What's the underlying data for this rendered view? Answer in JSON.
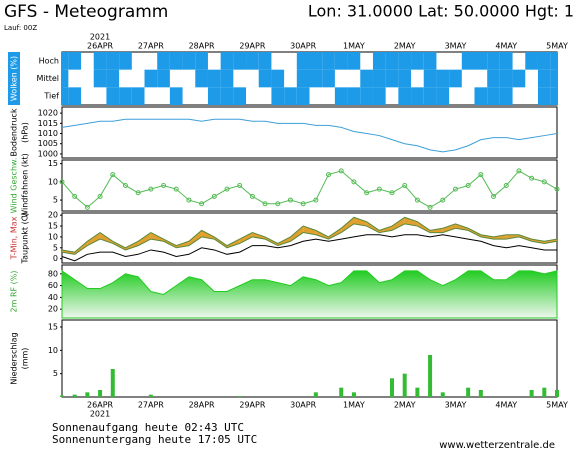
{
  "header": {
    "title": "GFS - Meteogramm",
    "location": "Lon: 31.0000 Lat: 50.0000 Hgt: 1",
    "run": "Lauf: 00Z",
    "year": "2021",
    "dates": [
      "26APR",
      "27APR",
      "28APR",
      "29APR",
      "30APR",
      "1MAY",
      "2MAY",
      "3MAY",
      "4MAY",
      "5MAY"
    ]
  },
  "chart_data": [
    {
      "type": "cloud",
      "label": [
        "Wolken (%)"
      ],
      "rows": [
        "Hoch",
        "Mittel",
        "Tief"
      ],
      "color": "#1e9be8",
      "layers": [
        [
          100,
          100,
          0,
          100,
          100,
          100,
          0,
          0,
          100,
          100,
          100,
          100,
          0,
          100,
          100,
          100,
          100,
          0,
          0,
          100,
          100,
          100,
          100,
          100,
          0,
          100,
          100,
          100,
          100,
          100,
          0,
          0,
          100,
          100,
          100,
          100,
          0,
          100,
          100,
          100
        ],
        [
          100,
          0,
          0,
          100,
          100,
          0,
          0,
          100,
          100,
          0,
          0,
          100,
          100,
          100,
          0,
          0,
          100,
          100,
          0,
          100,
          100,
          100,
          0,
          0,
          100,
          100,
          100,
          100,
          0,
          100,
          100,
          100,
          0,
          0,
          100,
          100,
          100,
          0,
          100,
          100
        ],
        [
          100,
          100,
          0,
          0,
          100,
          100,
          100,
          0,
          0,
          100,
          0,
          0,
          100,
          100,
          100,
          0,
          0,
          100,
          100,
          100,
          0,
          0,
          100,
          100,
          100,
          100,
          0,
          100,
          100,
          100,
          100,
          0,
          0,
          100,
          100,
          100,
          0,
          0,
          100,
          100
        ]
      ]
    },
    {
      "type": "line",
      "label": [
        "Bodendruck",
        "(hPa)"
      ],
      "color": "#3ca0d8",
      "ylim": [
        998,
        1023
      ],
      "yticks": [
        1000,
        1005,
        1010,
        1015,
        1020
      ],
      "values": [
        1013,
        1014,
        1015,
        1016,
        1016,
        1017,
        1017,
        1017,
        1017,
        1017,
        1017,
        1016,
        1017,
        1017,
        1017,
        1016,
        1016,
        1015,
        1015,
        1015,
        1014,
        1014,
        1013,
        1011,
        1010,
        1009,
        1007,
        1005,
        1004,
        1002,
        1001,
        1002,
        1004,
        1007,
        1008,
        1008,
        1007,
        1008,
        1009,
        1010
      ]
    },
    {
      "type": "line",
      "label": [
        "Wind Geschw.",
        "Windfahnen (kt)"
      ],
      "label_colors": [
        "#33aa33",
        "#000000"
      ],
      "color": "#55bb55",
      "markers": true,
      "ylim": [
        2,
        16
      ],
      "yticks": [
        5,
        10,
        15
      ],
      "values": [
        10,
        6,
        3,
        6,
        12,
        9,
        7,
        8,
        9,
        8,
        5,
        4,
        6,
        8,
        9,
        6,
        4,
        4,
        5,
        4,
        5,
        12,
        13,
        10,
        7,
        8,
        7,
        9,
        5,
        3,
        5,
        8,
        9,
        12,
        6,
        9,
        13,
        11,
        10,
        8
      ]
    },
    {
      "type": "band",
      "label": [
        "T-Min, Max",
        "Taupunkt (C)"
      ],
      "label_colors": [
        "#cc3333",
        "#000000"
      ],
      "color": "#e0a030",
      "line_color": "#5a8a3a",
      "dew_color": "#000000",
      "ylim": [
        -2,
        21
      ],
      "yticks": [
        0,
        5,
        10,
        15,
        20
      ],
      "tmin": [
        3,
        2,
        6,
        9,
        7,
        4,
        6,
        9,
        8,
        5,
        6,
        10,
        9,
        5,
        7,
        10,
        9,
        6,
        8,
        12,
        11,
        9,
        12,
        16,
        15,
        12,
        13,
        16,
        15,
        12,
        12,
        14,
        13,
        10,
        9,
        9,
        10,
        8,
        7,
        8
      ],
      "tmax": [
        4,
        3,
        8,
        12,
        8,
        5,
        8,
        12,
        9,
        6,
        8,
        13,
        10,
        6,
        9,
        12,
        10,
        7,
        10,
        15,
        13,
        10,
        14,
        19,
        17,
        13,
        15,
        19,
        17,
        13,
        14,
        16,
        14,
        11,
        10,
        11,
        11,
        9,
        8,
        9
      ],
      "dewpoint": [
        1,
        -1,
        2,
        3,
        3,
        1,
        2,
        4,
        3,
        1,
        2,
        5,
        4,
        2,
        3,
        6,
        6,
        5,
        6,
        8,
        9,
        8,
        9,
        10,
        11,
        11,
        10,
        11,
        11,
        10,
        11,
        10,
        9,
        8,
        6,
        5,
        6,
        5,
        4,
        4
      ]
    },
    {
      "type": "area",
      "label": [
        "2m RF (%)"
      ],
      "label_colors": [
        "#33aa33"
      ],
      "color": "#22cc22",
      "ylim": [
        5,
        95
      ],
      "yticks": [
        20,
        40,
        60,
        80
      ],
      "values": [
        85,
        70,
        55,
        55,
        65,
        80,
        75,
        50,
        45,
        60,
        75,
        70,
        50,
        50,
        60,
        70,
        70,
        65,
        60,
        75,
        70,
        60,
        65,
        85,
        85,
        65,
        70,
        85,
        85,
        70,
        60,
        70,
        85,
        85,
        70,
        70,
        85,
        85,
        80,
        85
      ]
    },
    {
      "type": "bar",
      "label": [
        "Niederschlag",
        "(mm)"
      ],
      "color": "#33bb33",
      "ylim": [
        0,
        16.5
      ],
      "yticks": [
        5,
        10,
        15
      ],
      "values": [
        0.3,
        0.5,
        1,
        1.5,
        6,
        0,
        0,
        0.5,
        0,
        0,
        0,
        0,
        0,
        0,
        0.2,
        0,
        0,
        0,
        0,
        0,
        1,
        0,
        2,
        1,
        0,
        0,
        4,
        5,
        2,
        9,
        1,
        0,
        2,
        1.5,
        0,
        0,
        0,
        1.5,
        2,
        1.5
      ]
    }
  ],
  "footer": {
    "sunrise": "Sonnenaufgang heute 02:43 UTC",
    "sunset": "Sonnenuntergang heute 17:05 UTC",
    "source": "www.wetterzentrale.de"
  }
}
